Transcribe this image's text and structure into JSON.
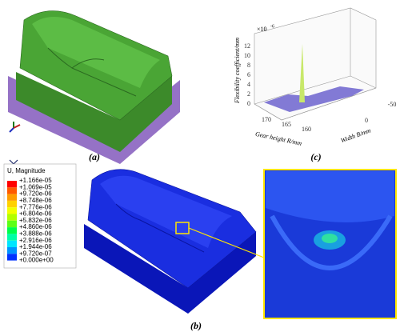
{
  "panels": {
    "a": {
      "label": "(a)"
    },
    "b": {
      "label": "(b)"
    },
    "c": {
      "label": "(c)"
    }
  },
  "legend": {
    "title": "U, Magnitude",
    "labels": [
      "+1.166e-05",
      "+1.069e-05",
      "+9.720e-06",
      "+8.748e-06",
      "+7.776e-06",
      "+6.804e-06",
      "+5.832e-06",
      "+4.860e-06",
      "+3.888e-06",
      "+2.916e-06",
      "+1.944e-06",
      "+9.720e-07",
      "+0.000e+00"
    ],
    "colors": [
      "#ff0000",
      "#ff5a00",
      "#ff9c00",
      "#ffd100",
      "#f2ff00",
      "#b3ff00",
      "#5cff16",
      "#00ff4a",
      "#00ffa6",
      "#00e5ff",
      "#0094ff",
      "#0033ff"
    ]
  },
  "plot": {
    "multiplier": "×10",
    "exponent": "-6",
    "y_label": "Flexibility coefficient/mm",
    "y_ticks": [
      "0",
      "2",
      "4",
      "6",
      "8",
      "10",
      "12"
    ],
    "x_label": "Gear height R/mm",
    "x_ticks": [
      "170",
      "165",
      "160"
    ],
    "z_label": "Width B/mm",
    "z_ticks": [
      "-50",
      "0"
    ]
  }
}
